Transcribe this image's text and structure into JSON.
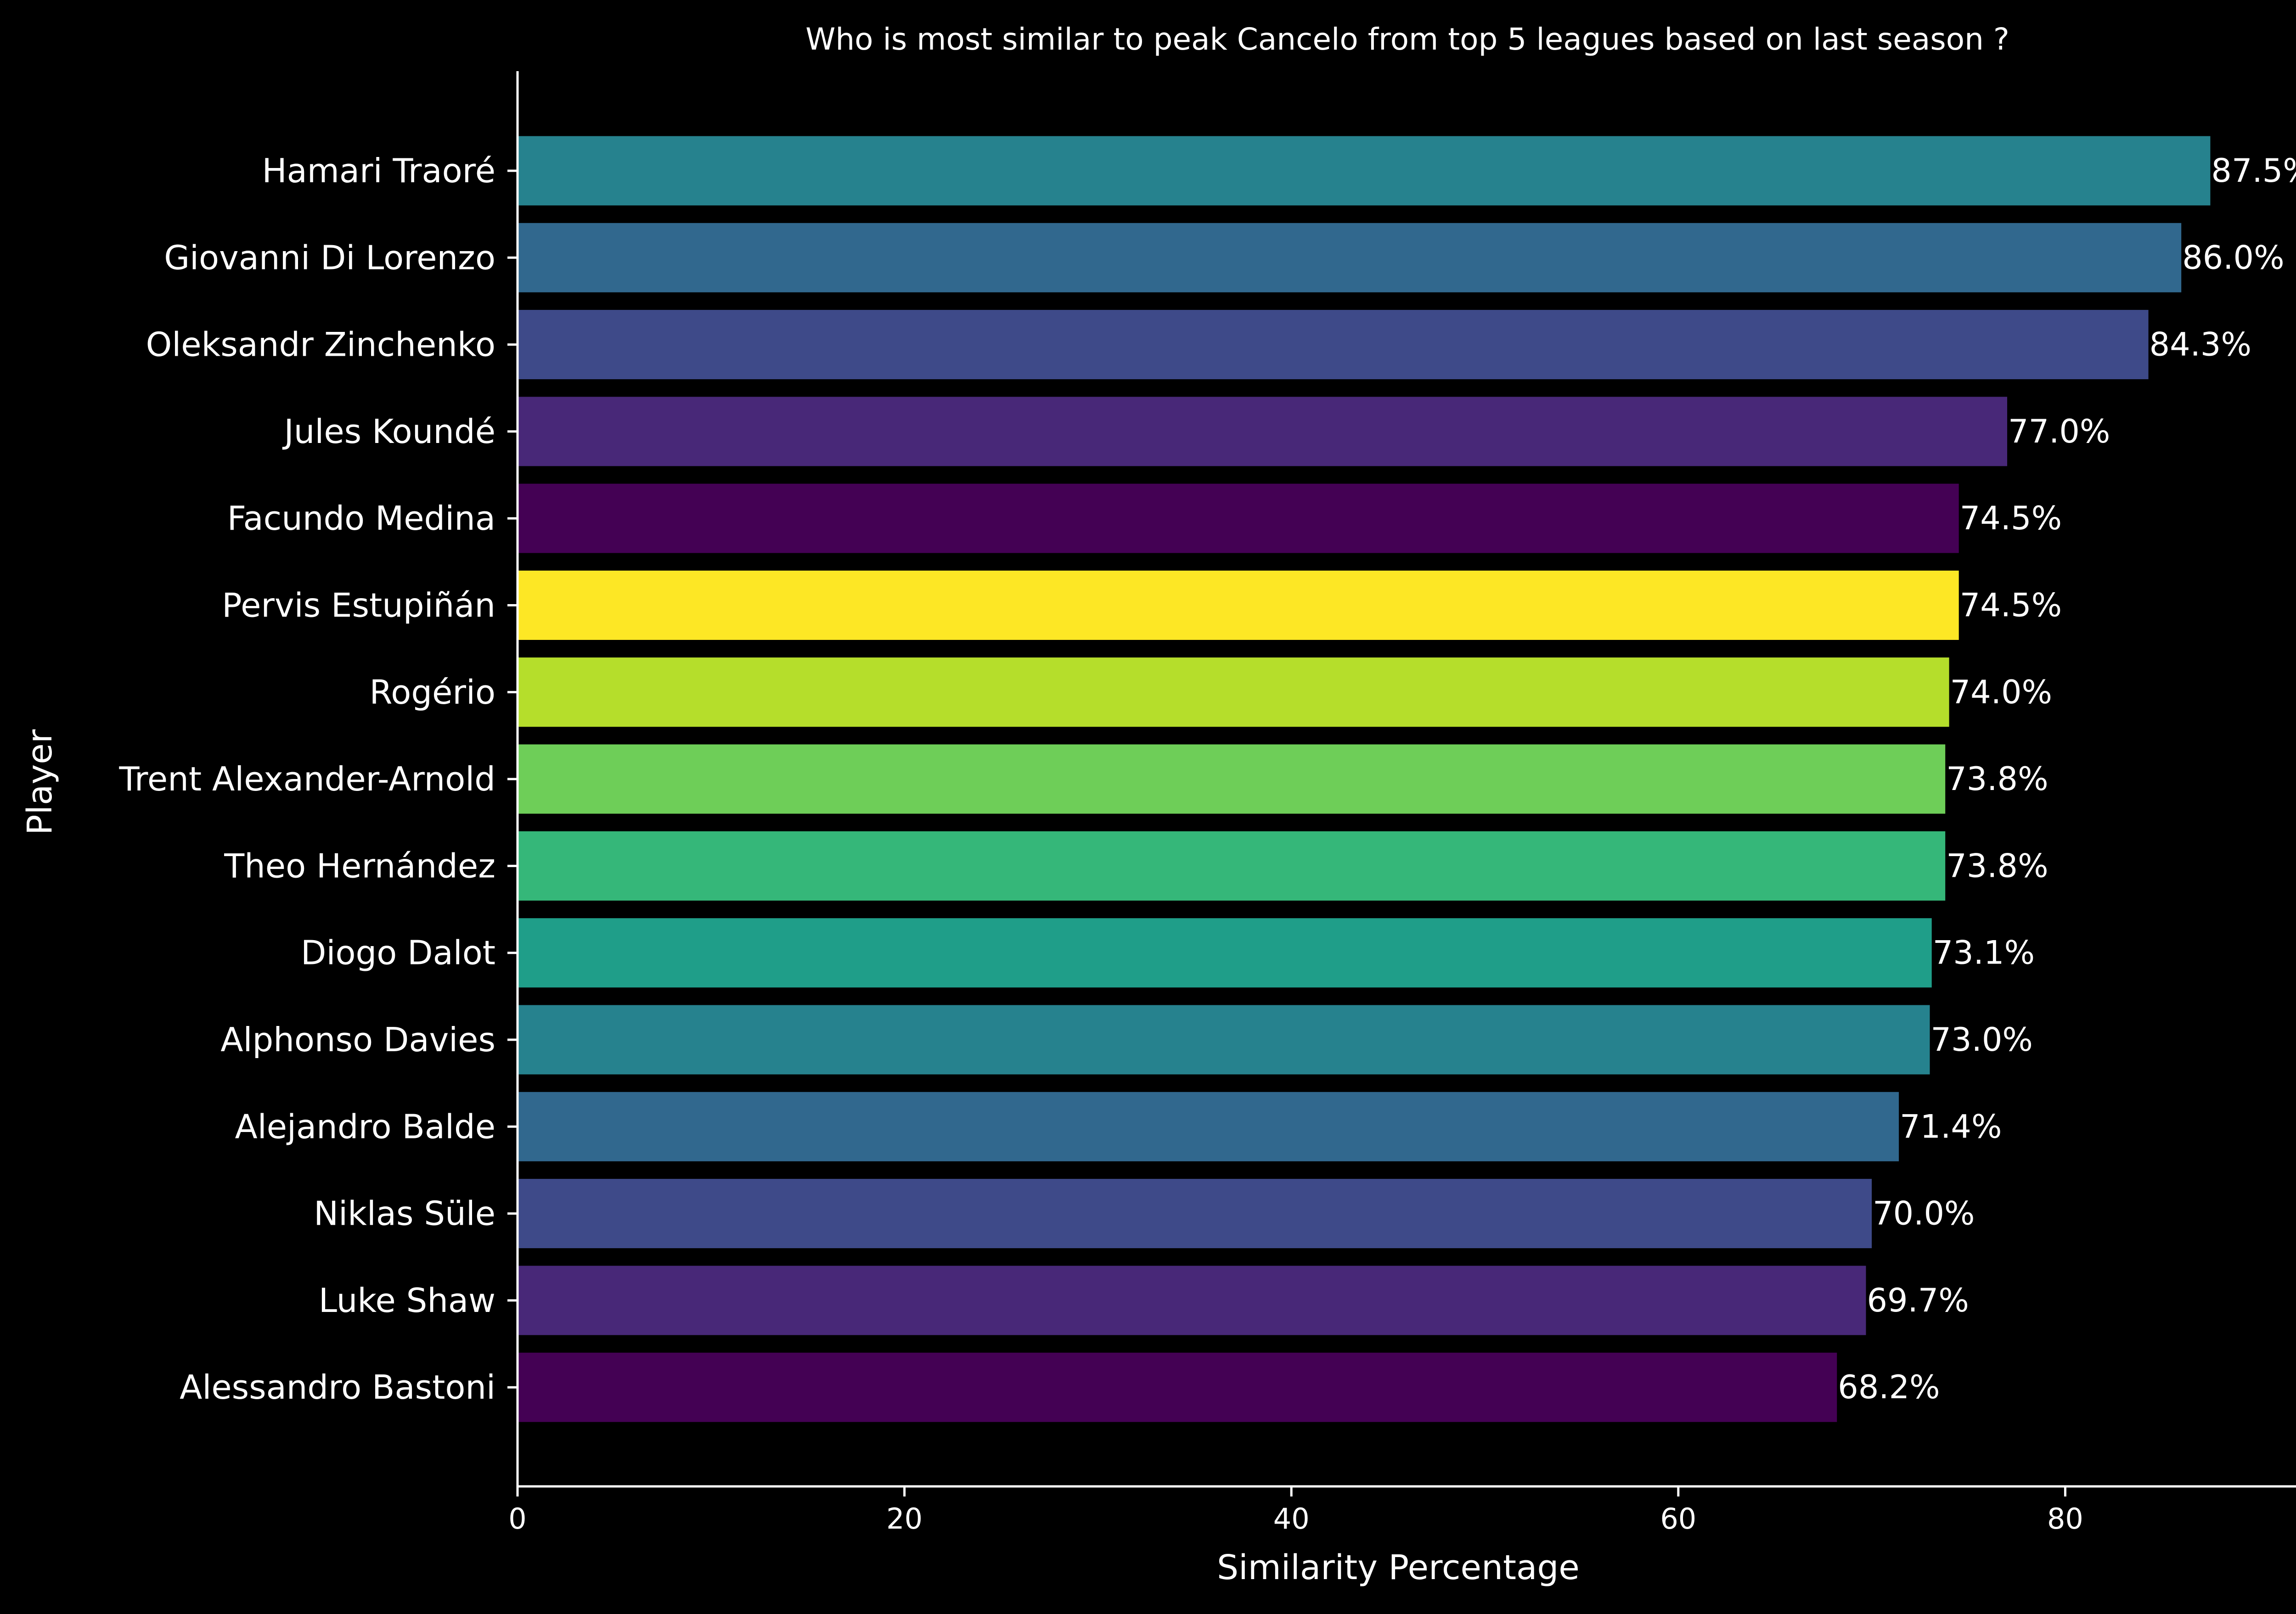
{
  "chart_data": {
    "type": "bar",
    "orientation": "horizontal",
    "title": "Who is most similar to peak Cancelo from top 5 leagues based on last season ?",
    "xlabel": "Similarity Percentage",
    "ylabel": "Player",
    "xlim": [
      0,
      92
    ],
    "xticks": [
      0,
      20,
      40,
      60,
      80
    ],
    "grid": false,
    "categories": [
      "Hamari Traoré",
      "Giovanni Di Lorenzo",
      "Oleksandr Zinchenko",
      "Jules Koundé",
      "Facundo Medina",
      "Pervis Estupiñán",
      "Rogério",
      "Trent Alexander-Arnold",
      "Theo Hernández",
      "Diogo Dalot",
      "Alphonso Davies",
      "Alejandro Balde",
      "Niklas Süle",
      "Luke Shaw",
      "Alessandro Bastoni"
    ],
    "values": [
      87.5,
      86.0,
      84.3,
      77.0,
      74.5,
      74.5,
      74.0,
      73.8,
      73.8,
      73.1,
      73.0,
      71.4,
      70.0,
      69.7,
      68.2
    ],
    "value_labels": [
      "87.5%",
      "86.0%",
      "84.3%",
      "77.0%",
      "74.5%",
      "74.5%",
      "74.0%",
      "73.8%",
      "73.8%",
      "73.1%",
      "73.0%",
      "71.4%",
      "70.0%",
      "69.7%",
      "68.2%"
    ],
    "colors": [
      "#26828e",
      "#31688e",
      "#3e4a89",
      "#482878",
      "#440154",
      "#fde725",
      "#b5de2b",
      "#6ece58",
      "#35b779",
      "#1f9e89",
      "#26828e",
      "#31688e",
      "#3e4a89",
      "#482878",
      "#440154"
    ]
  },
  "theme": {
    "background": "#000000",
    "axis_color": "#ffffff",
    "text_color": "#ffffff"
  }
}
